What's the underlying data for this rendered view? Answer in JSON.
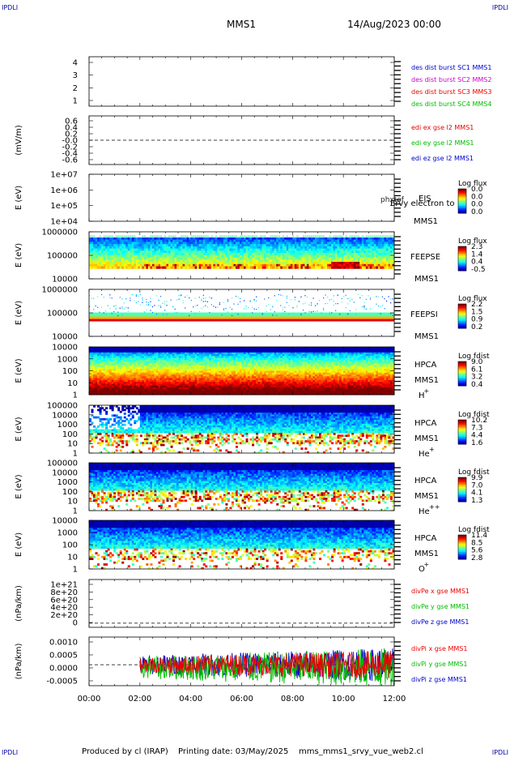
{
  "header": {
    "corner_label": "IPDLI",
    "mission": "MMS1",
    "datetime": "14/Aug/2023 00:00"
  },
  "footer": {
    "produced_by": "Produced by cl (IRAP)",
    "printing_date": "Printing date: 03/May/2025",
    "filename": "mms_mms1_srvy_vue_web2.cl"
  },
  "x_axis": {
    "tick_labels": [
      "00:00",
      "02:00",
      "04:00",
      "06:00",
      "08:00",
      "10:00",
      "12:00"
    ],
    "range_hours": [
      0,
      12
    ]
  },
  "chart_data": [
    {
      "id": "des-dist-burst",
      "type": "line",
      "ylabel": "",
      "yticks": [
        "1",
        "2",
        "3",
        "4"
      ],
      "ylim": [
        0.6,
        4.3
      ],
      "series": [
        {
          "name": "des dist burst SC1 MMS1",
          "color": "#0000cc",
          "values": []
        },
        {
          "name": "des dist burst SC2 MMS2",
          "color": "#cc00cc",
          "values": []
        },
        {
          "name": "des dist burst SC3 MMS3",
          "color": "#ee0000",
          "values": []
        },
        {
          "name": "des dist burst SC4 MMS4",
          "color": "#00bb00",
          "values": []
        }
      ]
    },
    {
      "id": "edi",
      "type": "line",
      "ylabel": "(mV/m)",
      "yticks": [
        "0.6",
        "0.4",
        "0.2",
        "-0.0",
        "-0.2",
        "-0.4",
        "-0.6"
      ],
      "ylim": [
        -0.7,
        0.7
      ],
      "reference_line": 0,
      "series": [
        {
          "name": "edi ex gse l2 MMS1",
          "color": "#ee0000",
          "values": []
        },
        {
          "name": "edi ey gse l2 MMS1",
          "color": "#00bb00",
          "values": []
        },
        {
          "name": "edi ez gse l2 MMS1",
          "color": "#0000cc",
          "values": []
        }
      ]
    },
    {
      "id": "eis",
      "type": "heatmap",
      "ylabel": "E (eV)",
      "yscale": "log",
      "yticks": [
        "1e+07",
        "1e+06",
        "1e+05",
        "1e+04"
      ],
      "ylim": [
        10000,
        10000000
      ],
      "instrument": [
        "EIS",
        "MMS1"
      ],
      "overlay_text": "phxtof",
      "overlay_text2": "Ervy electron to",
      "colorbar": {
        "label": "Log flux",
        "ticks": [
          "0.0",
          "0.0",
          "0.0",
          "0.0"
        ]
      },
      "data_coverage_hours": []
    },
    {
      "id": "feeps-e",
      "type": "heatmap",
      "ylabel": "E (eV)",
      "yscale": "log",
      "yticks": [
        "1000000",
        "100000",
        "10000"
      ],
      "ylim": [
        10000,
        1000000
      ],
      "instrument": [
        "FEEPSE",
        "MMS1"
      ],
      "colorbar": {
        "label": "Log flux",
        "ticks": [
          "2.3",
          "1.4",
          "0.4",
          "-0.5"
        ]
      },
      "data_coverage_hours": [
        0,
        12
      ]
    },
    {
      "id": "feeps-i",
      "type": "heatmap",
      "ylabel": "E (eV)",
      "yscale": "log",
      "yticks": [
        "1000000",
        "100000",
        "10000"
      ],
      "ylim": [
        10000,
        1000000
      ],
      "instrument": [
        "FEEPSI",
        "MMS1"
      ],
      "colorbar": {
        "label": "Log flux",
        "ticks": [
          "2.2",
          "1.5",
          "0.9",
          "0.2"
        ]
      },
      "data_coverage_hours": [
        0,
        12
      ]
    },
    {
      "id": "hpca-h",
      "type": "heatmap",
      "ylabel": "E (eV)",
      "yscale": "log",
      "yticks": [
        "10000",
        "1000",
        "100",
        "10",
        "1"
      ],
      "ylim": [
        1,
        40000
      ],
      "instrument": [
        "HPCA",
        "MMS1"
      ],
      "species": "H",
      "species_sup": "+",
      "colorbar": {
        "label": "Log fdist",
        "ticks": [
          "9.0",
          "6.1",
          "3.2",
          "0.4"
        ]
      },
      "data_coverage_hours": [
        0,
        12
      ]
    },
    {
      "id": "hpca-he",
      "type": "heatmap",
      "ylabel": "E (eV)",
      "yscale": "log",
      "yticks": [
        "100000",
        "10000",
        "1000",
        "100",
        "10",
        "1"
      ],
      "ylim": [
        1,
        100000
      ],
      "instrument": [
        "HPCA",
        "MMS1"
      ],
      "species": "He",
      "species_sup": "+",
      "colorbar": {
        "label": "Log fdist",
        "ticks": [
          "10.2",
          "7.3",
          "4.4",
          "1.6"
        ]
      },
      "data_coverage_hours": [
        0,
        12
      ]
    },
    {
      "id": "hpca-hepp",
      "type": "heatmap",
      "ylabel": "E (eV)",
      "yscale": "log",
      "yticks": [
        "100000",
        "10000",
        "1000",
        "100",
        "10",
        "1"
      ],
      "ylim": [
        1,
        100000
      ],
      "instrument": [
        "HPCA",
        "MMS1"
      ],
      "species": "He",
      "species_sup": "++",
      "colorbar": {
        "label": "Log fdist",
        "ticks": [
          "9.9",
          "7.0",
          "4.1",
          "1.3"
        ]
      },
      "data_coverage_hours": [
        0,
        12
      ]
    },
    {
      "id": "hpca-o",
      "type": "heatmap",
      "ylabel": "E (eV)",
      "yscale": "log",
      "yticks": [
        "10000",
        "1000",
        "100",
        "10",
        "1"
      ],
      "ylim": [
        1,
        40000
      ],
      "instrument": [
        "HPCA",
        "MMS1"
      ],
      "species": "O",
      "species_sup": "+",
      "colorbar": {
        "label": "Log fdist",
        "ticks": [
          "11.4",
          "8.5",
          "5.6",
          "2.8"
        ]
      },
      "data_coverage_hours": [
        0,
        12
      ]
    },
    {
      "id": "divpe",
      "type": "line",
      "ylabel": "(nPa/km)",
      "yticks": [
        "1e+21",
        "8e+20",
        "6e+20",
        "4e+20",
        "2e+20",
        "0"
      ],
      "ylim": [
        -1e+20,
        1.05e+21
      ],
      "reference_line": 0,
      "series": [
        {
          "name": "divPe x gse MMS1",
          "color": "#ee0000",
          "values": []
        },
        {
          "name": "divPe y gse MMS1",
          "color": "#00bb00",
          "values": []
        },
        {
          "name": "divPe z gse MMS1",
          "color": "#0000cc",
          "values": []
        }
      ]
    },
    {
      "id": "divpi",
      "type": "line",
      "ylabel": "(nPa/km)",
      "yticks": [
        "0.0010",
        "0.0005",
        "0.0000",
        "-0.0005"
      ],
      "ylim": [
        -0.00085,
        0.00112
      ],
      "reference_line": 0,
      "data_start_hour": 2.0,
      "series": [
        {
          "name": "divPi x gse MMS1",
          "color": "#ee0000",
          "amplitude": 0.00032
        },
        {
          "name": "divPi y gse MMS1",
          "color": "#00bb00",
          "amplitude": 0.00045
        },
        {
          "name": "divPi z gse MMS1",
          "color": "#0000cc",
          "amplitude": 0.00038
        }
      ]
    }
  ]
}
